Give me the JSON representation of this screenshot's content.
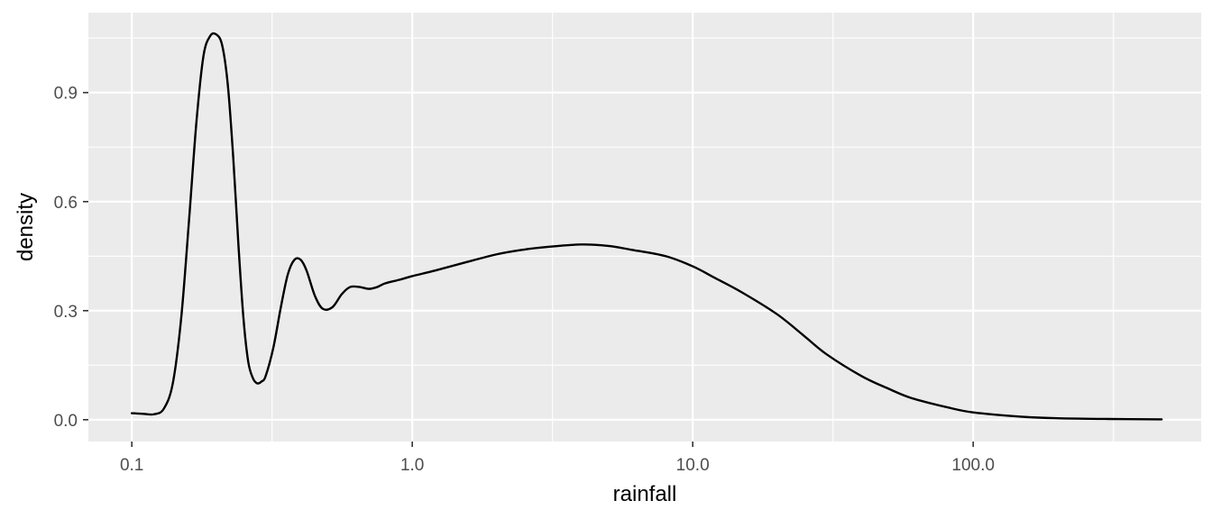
{
  "chart_data": {
    "type": "line",
    "title": "",
    "xlabel": "rainfall",
    "ylabel": "density",
    "x_scale": "log10",
    "xlim": [
      0.07,
      650
    ],
    "ylim": [
      -0.06,
      1.12
    ],
    "x_ticks": [
      0.1,
      1.0,
      10.0,
      100.0
    ],
    "x_tick_labels": [
      "0.1",
      "1.0",
      "10.0",
      "100.0"
    ],
    "y_ticks": [
      0.0,
      0.3,
      0.6,
      0.9
    ],
    "y_tick_labels": [
      "0.0",
      "0.3",
      "0.6",
      "0.9"
    ],
    "grid": true,
    "legend": "none",
    "series": [
      {
        "color": "#000000",
        "x": [
          0.1,
          0.11,
          0.12,
          0.13,
          0.14,
          0.15,
          0.16,
          0.17,
          0.18,
          0.19,
          0.2,
          0.21,
          0.22,
          0.23,
          0.24,
          0.25,
          0.26,
          0.27,
          0.28,
          0.29,
          0.3,
          0.32,
          0.34,
          0.36,
          0.38,
          0.4,
          0.42,
          0.45,
          0.48,
          0.52,
          0.56,
          0.6,
          0.65,
          0.7,
          0.75,
          0.8,
          0.9,
          1.0,
          1.2,
          1.5,
          2.0,
          2.5,
          3.0,
          4.0,
          5.0,
          6.0,
          8.0,
          10.0,
          12.0,
          15.0,
          20.0,
          25.0,
          30.0,
          40.0,
          50.0,
          60.0,
          80.0,
          100.0,
          150.0,
          200.0,
          300.0,
          470.0
        ],
        "y": [
          0.018,
          0.016,
          0.015,
          0.03,
          0.1,
          0.28,
          0.55,
          0.82,
          1.0,
          1.055,
          1.06,
          1.03,
          0.92,
          0.72,
          0.48,
          0.28,
          0.16,
          0.115,
          0.1,
          0.105,
          0.12,
          0.2,
          0.31,
          0.4,
          0.44,
          0.44,
          0.41,
          0.34,
          0.305,
          0.31,
          0.345,
          0.365,
          0.365,
          0.36,
          0.365,
          0.375,
          0.385,
          0.395,
          0.41,
          0.43,
          0.455,
          0.468,
          0.475,
          0.482,
          0.478,
          0.468,
          0.45,
          0.422,
          0.39,
          0.35,
          0.29,
          0.23,
          0.18,
          0.12,
          0.085,
          0.06,
          0.035,
          0.02,
          0.008,
          0.004,
          0.002,
          0.001
        ]
      }
    ]
  }
}
